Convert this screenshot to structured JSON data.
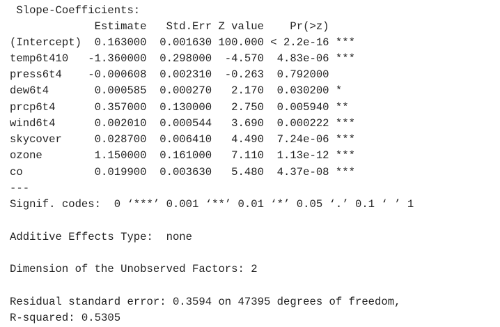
{
  "lines": [
    " Slope-Coefficients:",
    "             Estimate   Std.Err Z value    Pr(>z)    ",
    "(Intercept)  0.163000  0.001630 100.000 < 2.2e-16 ***",
    "temp6t410   -1.360000  0.298000  -4.570  4.83e-06 ***",
    "press6t4    -0.000608  0.002310  -0.263  0.792000    ",
    "dew6t4       0.000585  0.000270   2.170  0.030200 *  ",
    "prcp6t4      0.357000  0.130000   2.750  0.005940 ** ",
    "wind6t4      0.002010  0.000544   3.690  0.000222 ***",
    "skycover     0.028700  0.006410   4.490  7.24e-06 ***",
    "ozone        1.150000  0.161000   7.110  1.13e-12 ***",
    "co           0.019900  0.003630   5.480  4.37e-08 ***",
    "---",
    "Signif. codes:  0 ‘***’ 0.001 ‘**’ 0.01 ‘*’ 0.05 ‘.’ 0.1 ‘ ’ 1",
    "",
    "Additive Effects Type:  none ",
    "",
    "Dimension of the Unobserved Factors: 2 ",
    "",
    "Residual standard error: 0.3594 on 47395 degrees of freedom,",
    "R-squared: 0.5305"
  ]
}
